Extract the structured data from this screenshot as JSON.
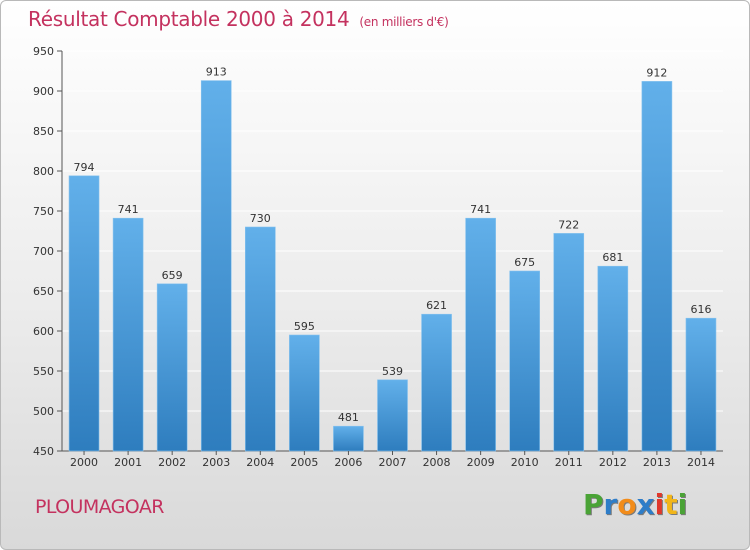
{
  "title": "Résultat Comptable 2000 à 2014",
  "subtitle": "(en milliers d'€)",
  "commune": "PLOUMAGOAR",
  "logo": {
    "letters": [
      "P",
      "r",
      "o",
      "x",
      "i",
      "t",
      "i"
    ],
    "colors": [
      "#4aa336",
      "#2e7dc8",
      "#f28c1a",
      "#2e7dc8",
      "#e0382b",
      "#f2b61a",
      "#4aa336"
    ]
  },
  "colors": {
    "bar_top": "#62b0ea",
    "bar_bottom": "#2e7dbe",
    "title": "#c4325f",
    "grid": "#ffffff"
  },
  "chart_data": {
    "type": "bar",
    "categories": [
      "2000",
      "2001",
      "2002",
      "2003",
      "2004",
      "2005",
      "2006",
      "2007",
      "2008",
      "2009",
      "2010",
      "2011",
      "2012",
      "2013",
      "2014"
    ],
    "values": [
      794,
      741,
      659,
      913,
      730,
      595,
      481,
      539,
      621,
      741,
      675,
      722,
      681,
      912,
      616
    ],
    "ylim": [
      450,
      950
    ],
    "yticks": [
      450,
      500,
      550,
      600,
      650,
      700,
      750,
      800,
      850,
      900,
      950
    ],
    "xlabel": "",
    "ylabel": "",
    "grid": true,
    "data_labels": true
  }
}
